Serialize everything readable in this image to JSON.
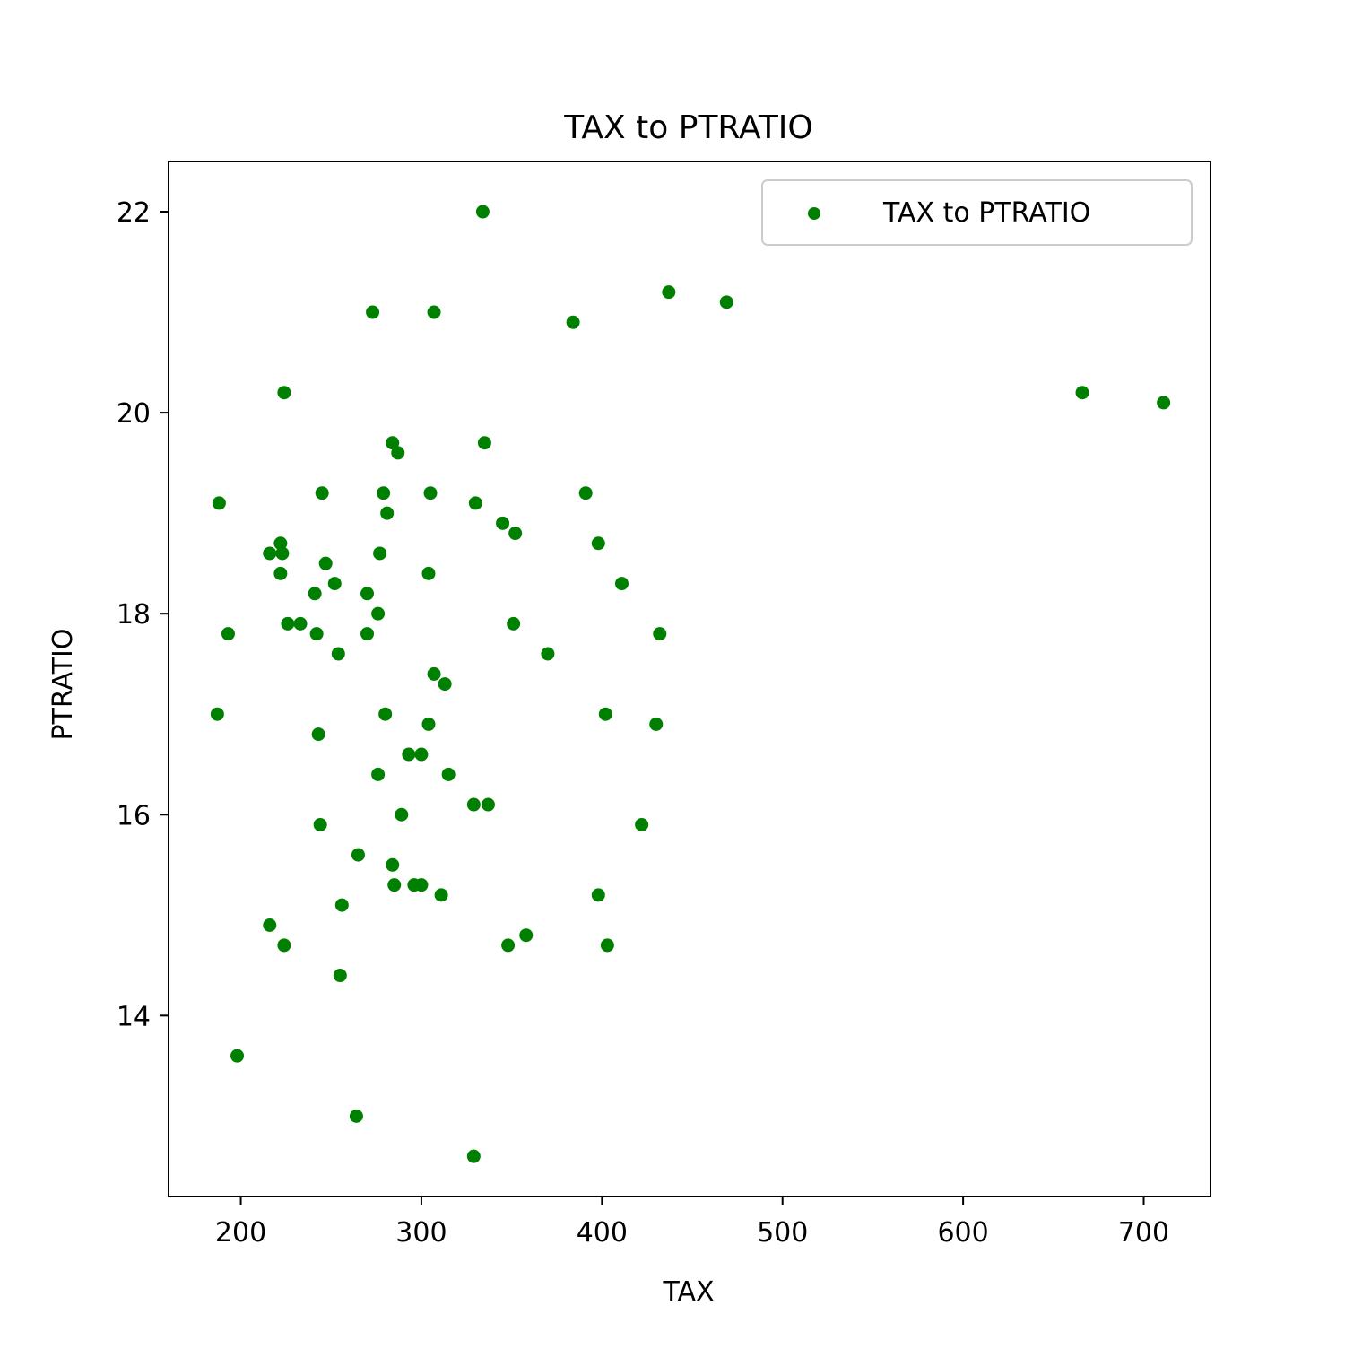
{
  "chart_data": {
    "type": "scatter",
    "title": "TAX to PTRATIO",
    "xlabel": "TAX",
    "ylabel": "PTRATIO",
    "xlim": [
      160,
      737
    ],
    "ylim": [
      12.2,
      22.5
    ],
    "xticks": [
      200,
      300,
      400,
      500,
      600,
      700
    ],
    "yticks": [
      14,
      16,
      18,
      20,
      22
    ],
    "grid": false,
    "legend_position": "top-right",
    "marker_color": "#008000",
    "series": [
      {
        "name": "TAX to PTRATIO",
        "points": [
          [
            334,
            22.0
          ],
          [
            437,
            21.2
          ],
          [
            469,
            21.1
          ],
          [
            273,
            21.0
          ],
          [
            307,
            21.0
          ],
          [
            384,
            20.9
          ],
          [
            224,
            20.2
          ],
          [
            666,
            20.2
          ],
          [
            711,
            20.1
          ],
          [
            284,
            19.7
          ],
          [
            335,
            19.7
          ],
          [
            287,
            19.6
          ],
          [
            245,
            19.2
          ],
          [
            279,
            19.2
          ],
          [
            305,
            19.2
          ],
          [
            391,
            19.2
          ],
          [
            188,
            19.1
          ],
          [
            330,
            19.1
          ],
          [
            281,
            19.0
          ],
          [
            345,
            18.9
          ],
          [
            352,
            18.8
          ],
          [
            222,
            18.7
          ],
          [
            398,
            18.7
          ],
          [
            216,
            18.6
          ],
          [
            223,
            18.6
          ],
          [
            277,
            18.6
          ],
          [
            247,
            18.5
          ],
          [
            222,
            18.4
          ],
          [
            304,
            18.4
          ],
          [
            252,
            18.3
          ],
          [
            411,
            18.3
          ],
          [
            241,
            18.2
          ],
          [
            270,
            18.2
          ],
          [
            276,
            18.0
          ],
          [
            226,
            17.9
          ],
          [
            233,
            17.9
          ],
          [
            351,
            17.9
          ],
          [
            193,
            17.8
          ],
          [
            242,
            17.8
          ],
          [
            270,
            17.8
          ],
          [
            432,
            17.8
          ],
          [
            254,
            17.6
          ],
          [
            370,
            17.6
          ],
          [
            307,
            17.4
          ],
          [
            313,
            17.3
          ],
          [
            187,
            17.0
          ],
          [
            280,
            17.0
          ],
          [
            402,
            17.0
          ],
          [
            304,
            16.9
          ],
          [
            430,
            16.9
          ],
          [
            243,
            16.8
          ],
          [
            293,
            16.6
          ],
          [
            300,
            16.6
          ],
          [
            276,
            16.4
          ],
          [
            315,
            16.4
          ],
          [
            329,
            16.1
          ],
          [
            337,
            16.1
          ],
          [
            289,
            16.0
          ],
          [
            244,
            15.9
          ],
          [
            422,
            15.9
          ],
          [
            265,
            15.6
          ],
          [
            284,
            15.5
          ],
          [
            285,
            15.3
          ],
          [
            296,
            15.3
          ],
          [
            300,
            15.3
          ],
          [
            311,
            15.2
          ],
          [
            398,
            15.2
          ],
          [
            256,
            15.1
          ],
          [
            216,
            14.9
          ],
          [
            358,
            14.8
          ],
          [
            224,
            14.7
          ],
          [
            348,
            14.7
          ],
          [
            403,
            14.7
          ],
          [
            255,
            14.4
          ],
          [
            198,
            13.6
          ],
          [
            264,
            13.0
          ],
          [
            329,
            12.6
          ]
        ]
      }
    ]
  }
}
